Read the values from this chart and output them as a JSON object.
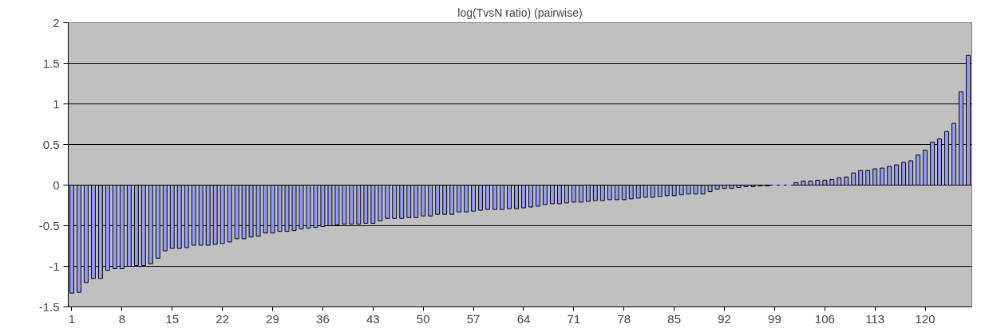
{
  "chart_data": {
    "type": "bar",
    "title": "log(TvsN ratio) (pairwise)",
    "categories": [
      "1",
      null,
      null,
      null,
      null,
      null,
      null,
      "8",
      null,
      null,
      null,
      null,
      null,
      null,
      "15",
      null,
      null,
      null,
      null,
      null,
      null,
      "22",
      null,
      null,
      null,
      null,
      null,
      null,
      "29",
      null,
      null,
      null,
      null,
      null,
      null,
      "36",
      null,
      null,
      null,
      null,
      null,
      null,
      "43",
      null,
      null,
      null,
      null,
      null,
      null,
      "50",
      null,
      null,
      null,
      null,
      null,
      null,
      "57",
      null,
      null,
      null,
      null,
      null,
      null,
      "64",
      null,
      null,
      null,
      null,
      null,
      null,
      "71",
      null,
      null,
      null,
      null,
      null,
      null,
      "78",
      null,
      null,
      null,
      null,
      null,
      null,
      "85",
      null,
      null,
      null,
      null,
      null,
      null,
      "92",
      null,
      null,
      null,
      null,
      null,
      null,
      "99",
      null,
      null,
      null,
      null,
      null,
      null,
      "106",
      null,
      null,
      null,
      null,
      null,
      null,
      "113",
      null,
      null,
      null,
      null,
      null,
      null,
      "120",
      null,
      null,
      null,
      null,
      null,
      null
    ],
    "values": [
      -1.33,
      -1.32,
      -1.2,
      -1.15,
      -1.15,
      -1.05,
      -1.03,
      -1.03,
      -1.0,
      -0.99,
      -0.99,
      -0.97,
      -0.9,
      -0.81,
      -0.78,
      -0.78,
      -0.77,
      -0.74,
      -0.74,
      -0.74,
      -0.73,
      -0.72,
      -0.7,
      -0.66,
      -0.66,
      -0.64,
      -0.63,
      -0.59,
      -0.59,
      -0.57,
      -0.57,
      -0.56,
      -0.54,
      -0.53,
      -0.52,
      -0.51,
      -0.5,
      -0.49,
      -0.48,
      -0.48,
      -0.48,
      -0.47,
      -0.47,
      -0.44,
      -0.41,
      -0.41,
      -0.41,
      -0.4,
      -0.4,
      -0.38,
      -0.38,
      -0.36,
      -0.36,
      -0.36,
      -0.33,
      -0.33,
      -0.32,
      -0.31,
      -0.3,
      -0.3,
      -0.3,
      -0.29,
      -0.29,
      -0.28,
      -0.27,
      -0.26,
      -0.24,
      -0.23,
      -0.23,
      -0.22,
      -0.21,
      -0.21,
      -0.2,
      -0.19,
      -0.19,
      -0.18,
      -0.18,
      -0.18,
      -0.17,
      -0.16,
      -0.15,
      -0.15,
      -0.14,
      -0.13,
      -0.13,
      -0.12,
      -0.11,
      -0.11,
      -0.11,
      -0.08,
      -0.05,
      -0.04,
      -0.04,
      -0.03,
      -0.02,
      -0.02,
      -0.01,
      -0.01,
      0,
      0,
      0,
      0.03,
      0.05,
      0.05,
      0.06,
      0.06,
      0.07,
      0.09,
      0.1,
      0.15,
      0.18,
      0.18,
      0.2,
      0.21,
      0.23,
      0.25,
      0.28,
      0.3,
      0.37,
      0.43,
      0.53,
      0.57,
      0.66,
      0.76,
      1.15,
      1.6
    ],
    "color": "#9999ff",
    "ylim": [
      -1.5,
      2
    ],
    "yticks": [
      -1.5,
      -1,
      -0.5,
      0,
      0.5,
      1,
      1.5,
      2
    ],
    "grid": "y"
  }
}
